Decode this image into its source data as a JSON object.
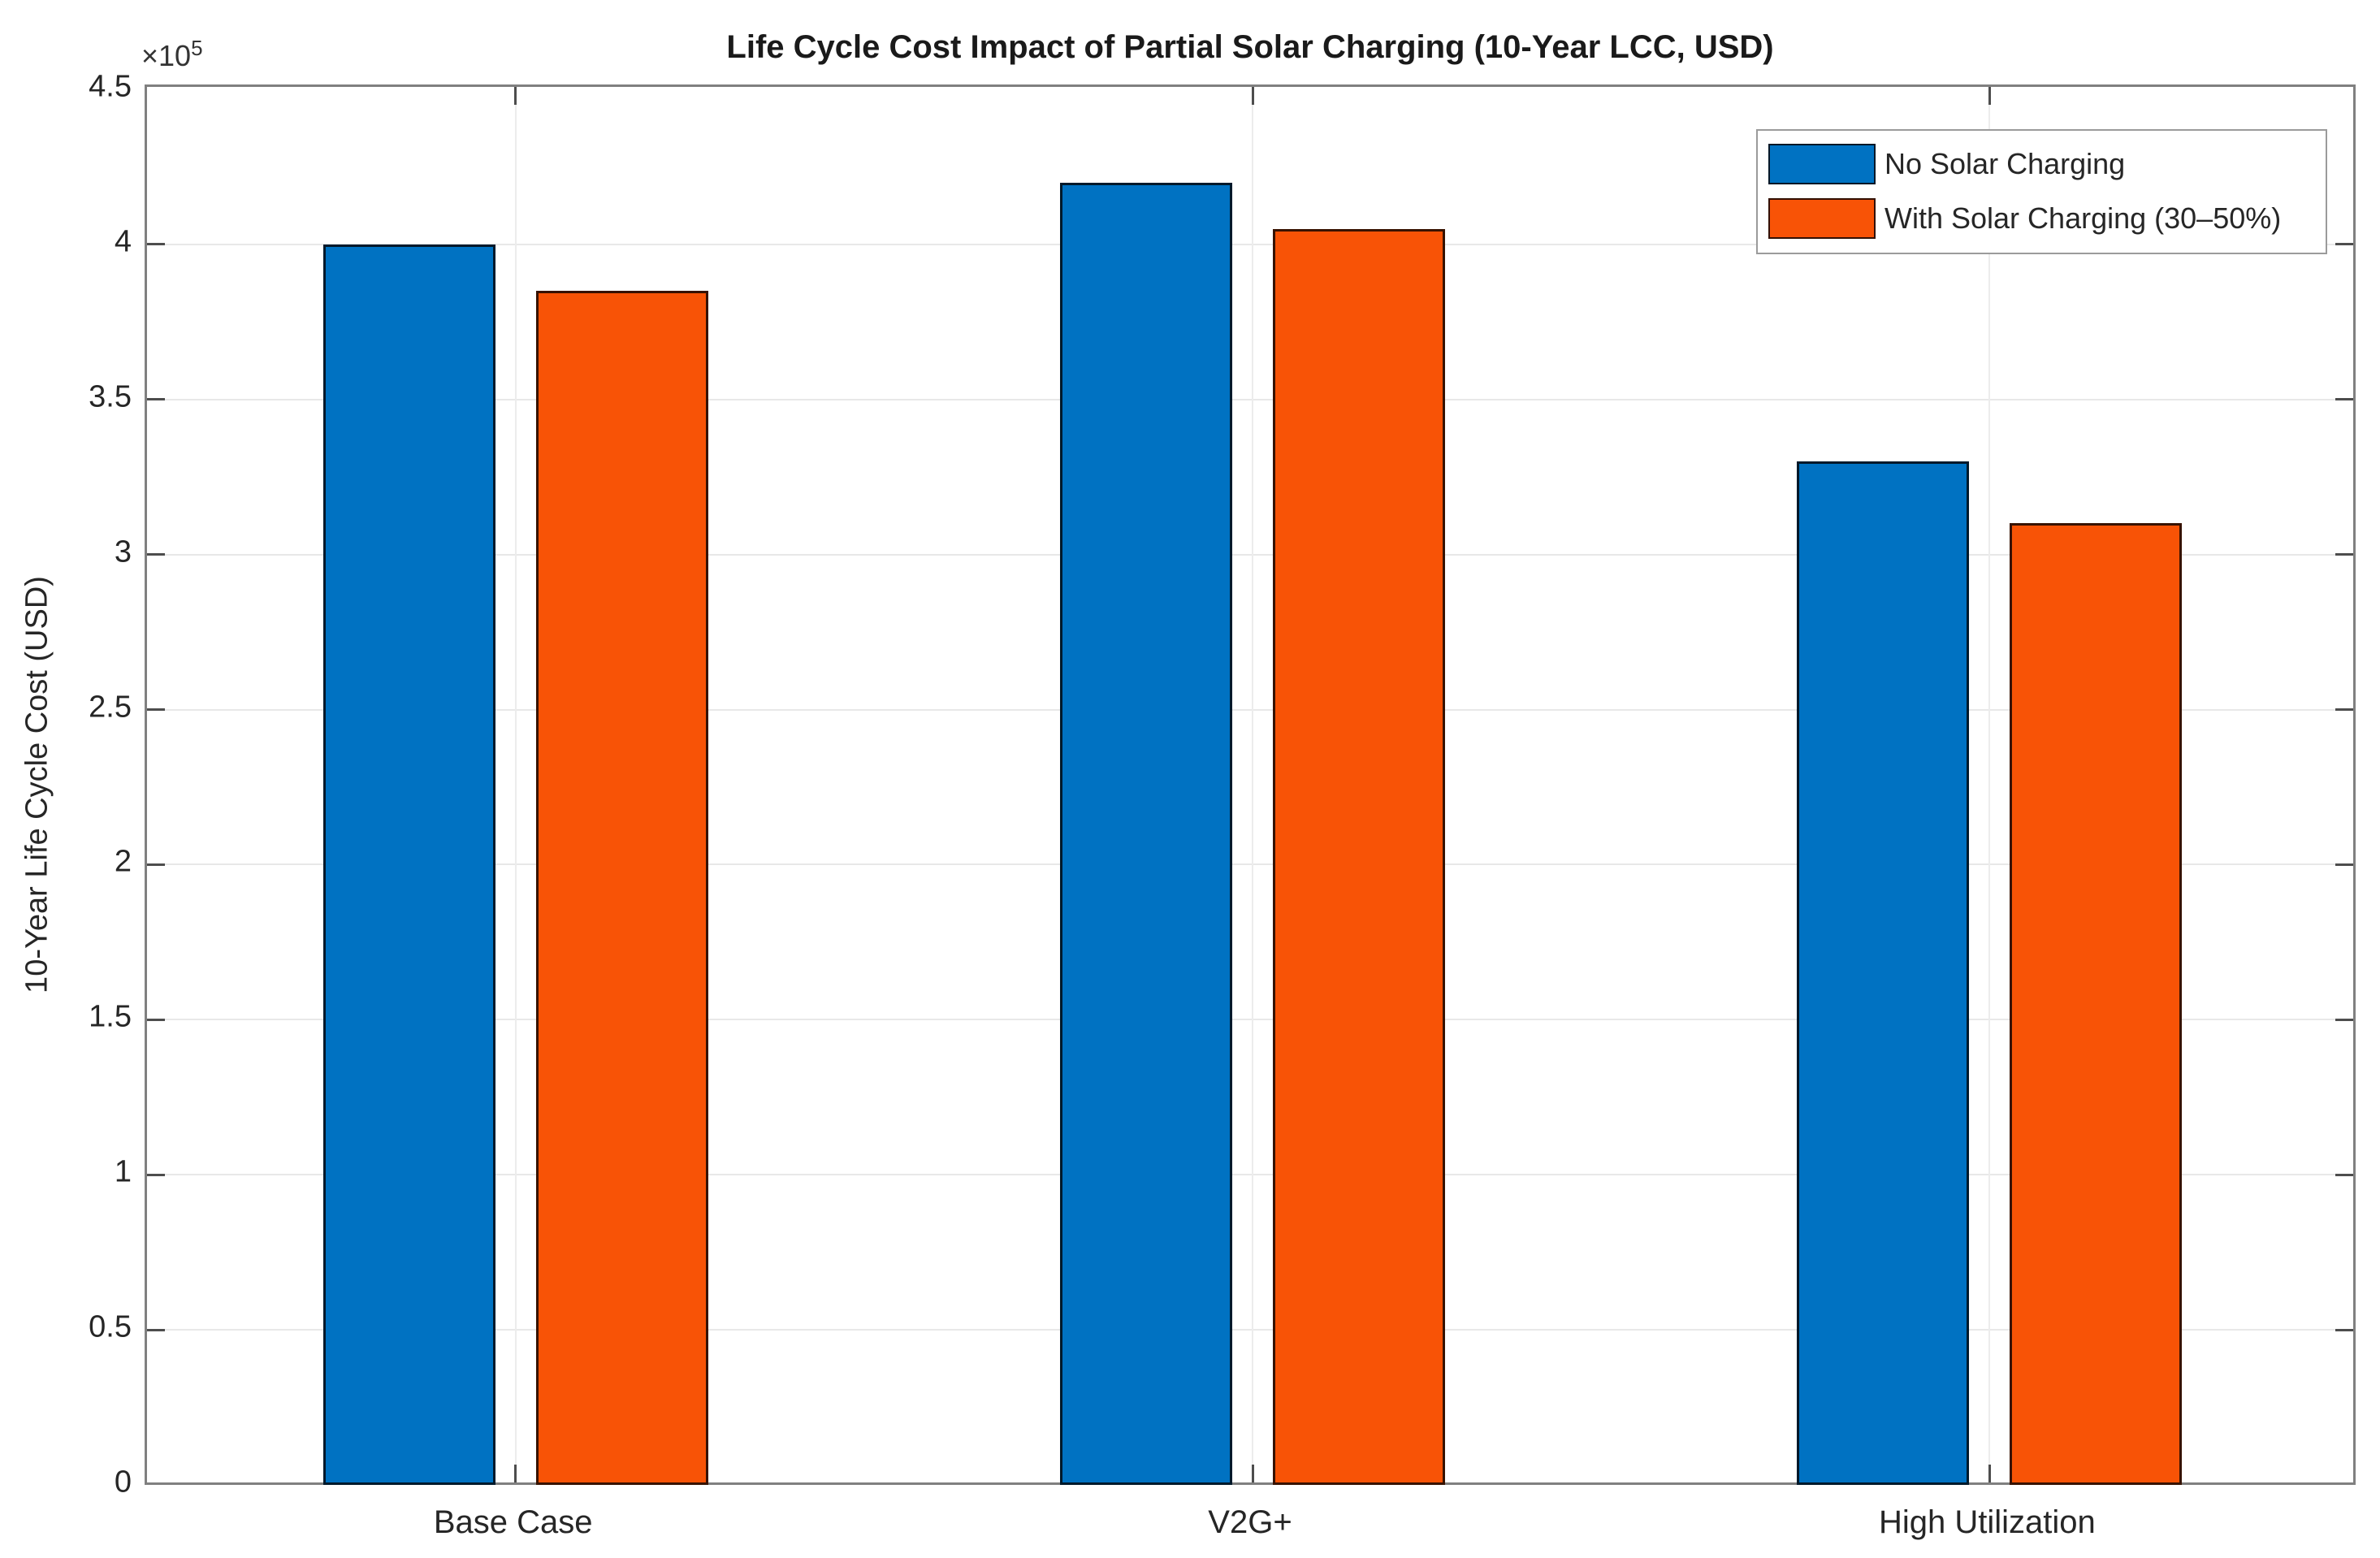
{
  "title": "Life Cycle Cost Impact of Partial Solar Charging (10-Year LCC, USD)",
  "y_axis": {
    "label": "10-Year Life Cycle Cost (USD)",
    "exponent_base": "×10",
    "exponent_power": "5",
    "tick_labels": [
      "0",
      "0.5",
      "1",
      "1.5",
      "2",
      "2.5",
      "3",
      "3.5",
      "4",
      "4.5"
    ]
  },
  "x_axis": {
    "categories": [
      "Base Case",
      "V2G+",
      "High Utilization"
    ]
  },
  "legend": {
    "items": [
      {
        "label": "No Solar Charging",
        "color": "#0072C2"
      },
      {
        "label": "With Solar Charging (30–50%)",
        "color": "#F85306"
      }
    ]
  },
  "colors": {
    "series_blue": "#0072C2",
    "series_orange": "#F85306",
    "bar_edge": "#1F1F1F",
    "axis_box": "#808080",
    "tick_mark": "#4D4D4D",
    "grid": "#E8E8E8",
    "text": "#262626"
  },
  "chart_data": {
    "type": "bar",
    "categories": [
      "Base Case",
      "V2G+",
      "High Utilization"
    ],
    "series": [
      {
        "name": "No Solar Charging",
        "color": "#0072C2",
        "values": [
          400000,
          420000,
          330000
        ]
      },
      {
        "name": "With Solar Charging (30–50%)",
        "color": "#F85306",
        "values": [
          385000,
          405000,
          310000
        ]
      }
    ],
    "title": "Life Cycle Cost Impact of Partial Solar Charging (10-Year LCC, USD)",
    "xlabel": "",
    "ylabel": "10-Year Life Cycle Cost (USD)",
    "ylim": [
      0,
      450000
    ],
    "y_tick_step": 50000,
    "y_scale_exponent": 5,
    "grid": "on",
    "legend_position": "top-right"
  }
}
